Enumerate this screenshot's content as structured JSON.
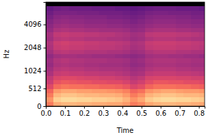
{
  "chart_data": {
    "type": "heatmap",
    "x_label": "Time",
    "y_label": "Hz",
    "xlim": [
      0,
      0.83
    ],
    "ylim": [
      0,
      8000
    ],
    "xticks": [
      {
        "value": 0,
        "label": "0.0"
      },
      0.1,
      0.2,
      0.3,
      0.4,
      0.5,
      0.6,
      0.7,
      0.8
    ],
    "yticks": [
      0,
      512,
      1024,
      2048,
      4096
    ],
    "color": "magma",
    "color_range": [
      -80,
      0
    ],
    "x": [
      0,
      0.04,
      0.08,
      0.12,
      0.16,
      0.2,
      0.24,
      0.28,
      0.32,
      0.36,
      0.4,
      0.44,
      0.48,
      0.52,
      0.56,
      0.6,
      0.64,
      0.68,
      0.72,
      0.76,
      0.8
    ],
    "y": [
      0,
      126,
      252,
      378,
      503,
      629,
      755,
      881,
      1007,
      1146,
      1305,
      1486,
      1691,
      1926,
      2192,
      2495,
      2841,
      3235,
      3684,
      4191,
      4773,
      5436,
      6190,
      7043
    ],
    "cells": [
      [
        -22,
        -14,
        -12,
        -12,
        -13,
        -13,
        -14,
        -14,
        -15,
        -15,
        -17,
        -22,
        -20,
        -15,
        -13,
        -12,
        -12,
        -13,
        -13,
        -14,
        -15
      ],
      [
        -18,
        -8,
        -6,
        -6,
        -7,
        -7,
        -8,
        -8,
        -9,
        -10,
        -13,
        -18,
        -15,
        -9,
        -7,
        -6,
        -6,
        -7,
        -7,
        -8,
        -9
      ],
      [
        -22,
        -12,
        -10,
        -10,
        -11,
        -12,
        -12,
        -13,
        -13,
        -14,
        -17,
        -22,
        -19,
        -13,
        -11,
        -10,
        -10,
        -11,
        -12,
        -12,
        -13
      ],
      [
        -26,
        -17,
        -15,
        -15,
        -16,
        -16,
        -17,
        -17,
        -18,
        -19,
        -21,
        -26,
        -24,
        -18,
        -16,
        -15,
        -15,
        -16,
        -17,
        -17,
        -18
      ],
      [
        -32,
        -25,
        -23,
        -24,
        -24,
        -25,
        -25,
        -26,
        -26,
        -27,
        -29,
        -33,
        -31,
        -26,
        -24,
        -24,
        -24,
        -25,
        -25,
        -26,
        -27
      ],
      [
        -36,
        -30,
        -28,
        -29,
        -30,
        -30,
        -31,
        -31,
        -32,
        -32,
        -34,
        -37,
        -35,
        -31,
        -29,
        -29,
        -30,
        -30,
        -31,
        -31,
        -32
      ],
      [
        -38,
        -33,
        -32,
        -32,
        -33,
        -34,
        -34,
        -35,
        -35,
        -36,
        -37,
        -40,
        -38,
        -34,
        -33,
        -33,
        -33,
        -34,
        -34,
        -35,
        -35
      ],
      [
        -42,
        -37,
        -36,
        -37,
        -37,
        -38,
        -38,
        -39,
        -39,
        -40,
        -41,
        -43,
        -42,
        -38,
        -37,
        -37,
        -37,
        -38,
        -38,
        -39,
        -40
      ],
      [
        -44,
        -40,
        -39,
        -40,
        -40,
        -41,
        -41,
        -42,
        -42,
        -42,
        -43,
        -45,
        -44,
        -41,
        -40,
        -40,
        -40,
        -41,
        -41,
        -42,
        -42
      ],
      [
        -46,
        -42,
        -41,
        -42,
        -42,
        -43,
        -43,
        -44,
        -44,
        -44,
        -45,
        -47,
        -46,
        -43,
        -42,
        -42,
        -42,
        -43,
        -43,
        -44,
        -44
      ],
      [
        -45,
        -41,
        -40,
        -41,
        -41,
        -42,
        -42,
        -42,
        -43,
        -43,
        -44,
        -46,
        -45,
        -42,
        -41,
        -41,
        -41,
        -42,
        -42,
        -43,
        -43
      ],
      [
        -47,
        -44,
        -43,
        -43,
        -44,
        -44,
        -45,
        -45,
        -45,
        -46,
        -47,
        -48,
        -47,
        -44,
        -43,
        -43,
        -44,
        -44,
        -45,
        -45,
        -46
      ],
      [
        -44,
        -40,
        -39,
        -40,
        -40,
        -41,
        -41,
        -41,
        -42,
        -42,
        -43,
        -45,
        -44,
        -41,
        -40,
        -40,
        -40,
        -41,
        -41,
        -42,
        -42
      ],
      [
        -42,
        -37,
        -36,
        -37,
        -37,
        -38,
        -38,
        -39,
        -39,
        -40,
        -41,
        -43,
        -42,
        -38,
        -37,
        -37,
        -37,
        -38,
        -38,
        -39,
        -40
      ],
      [
        -41,
        -36,
        -35,
        -36,
        -36,
        -37,
        -37,
        -38,
        -38,
        -39,
        -40,
        -42,
        -41,
        -37,
        -36,
        -36,
        -36,
        -37,
        -37,
        -38,
        -39
      ],
      [
        -44,
        -40,
        -39,
        -40,
        -40,
        -41,
        -41,
        -41,
        -42,
        -42,
        -43,
        -45,
        -44,
        -41,
        -40,
        -40,
        -40,
        -41,
        -41,
        -42,
        -42
      ],
      [
        -43,
        -38,
        -37,
        -38,
        -38,
        -39,
        -39,
        -40,
        -40,
        -41,
        -42,
        -44,
        -43,
        -39,
        -38,
        -38,
        -38,
        -39,
        -39,
        -40,
        -41
      ],
      [
        -46,
        -42,
        -41,
        -42,
        -42,
        -43,
        -43,
        -44,
        -44,
        -44,
        -45,
        -47,
        -46,
        -43,
        -42,
        -42,
        -42,
        -43,
        -43,
        -44,
        -44
      ],
      [
        -48,
        -45,
        -44,
        -45,
        -45,
        -46,
        -46,
        -46,
        -47,
        -47,
        -48,
        -49,
        -48,
        -46,
        -45,
        -45,
        -45,
        -46,
        -46,
        -47,
        -47
      ],
      [
        -50,
        -47,
        -46,
        -47,
        -47,
        -48,
        -48,
        -48,
        -49,
        -49,
        -50,
        -51,
        -50,
        -48,
        -47,
        -47,
        -47,
        -48,
        -48,
        -49,
        -49
      ],
      [
        -52,
        -49,
        -48,
        -49,
        -49,
        -50,
        -50,
        -50,
        -51,
        -51,
        -52,
        -53,
        -52,
        -50,
        -49,
        -49,
        -49,
        -50,
        -50,
        -51,
        -51
      ],
      [
        -54,
        -51,
        -51,
        -51,
        -52,
        -52,
        -52,
        -53,
        -53,
        -53,
        -54,
        -55,
        -54,
        -52,
        -51,
        -51,
        -52,
        -52,
        -52,
        -53,
        -53
      ],
      [
        -56,
        -54,
        -53,
        -54,
        -54,
        -54,
        -55,
        -55,
        -55,
        -56,
        -56,
        -57,
        -56,
        -55,
        -54,
        -54,
        -54,
        -55,
        -55,
        -55,
        -56
      ],
      [
        -80,
        -80,
        -80,
        -80,
        -80,
        -80,
        -80,
        -80,
        -80,
        -80,
        -80,
        -80,
        -80,
        -80,
        -80,
        -80,
        -80,
        -80,
        -80,
        -80,
        -80
      ]
    ]
  }
}
